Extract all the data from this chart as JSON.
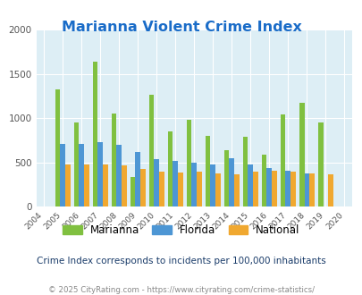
{
  "title": "Marianna Violent Crime Index",
  "years": [
    2004,
    2005,
    2006,
    2007,
    2008,
    2009,
    2010,
    2011,
    2012,
    2013,
    2014,
    2015,
    2016,
    2017,
    2018,
    2019,
    2020
  ],
  "marianna": [
    null,
    1320,
    950,
    1640,
    1050,
    335,
    1265,
    850,
    975,
    800,
    640,
    790,
    590,
    1040,
    1170,
    950,
    null
  ],
  "florida": [
    null,
    705,
    705,
    730,
    695,
    620,
    540,
    515,
    495,
    470,
    545,
    470,
    430,
    405,
    370,
    null,
    null
  ],
  "national": [
    null,
    470,
    475,
    470,
    460,
    425,
    395,
    385,
    390,
    375,
    365,
    390,
    400,
    395,
    370,
    365,
    null
  ],
  "marianna_color": "#80c040",
  "florida_color": "#4d96d4",
  "national_color": "#f0a830",
  "bg_color": "#ddeef5",
  "title_color": "#1a6cc8",
  "ylim": [
    0,
    2000
  ],
  "yticks": [
    0,
    500,
    1000,
    1500,
    2000
  ],
  "bar_width": 0.27,
  "subtitle": "Crime Index corresponds to incidents per 100,000 inhabitants",
  "footer": "© 2025 CityRating.com - https://www.cityrating.com/crime-statistics/",
  "subtitle_color": "#1a3c6a",
  "footer_color": "#888888"
}
